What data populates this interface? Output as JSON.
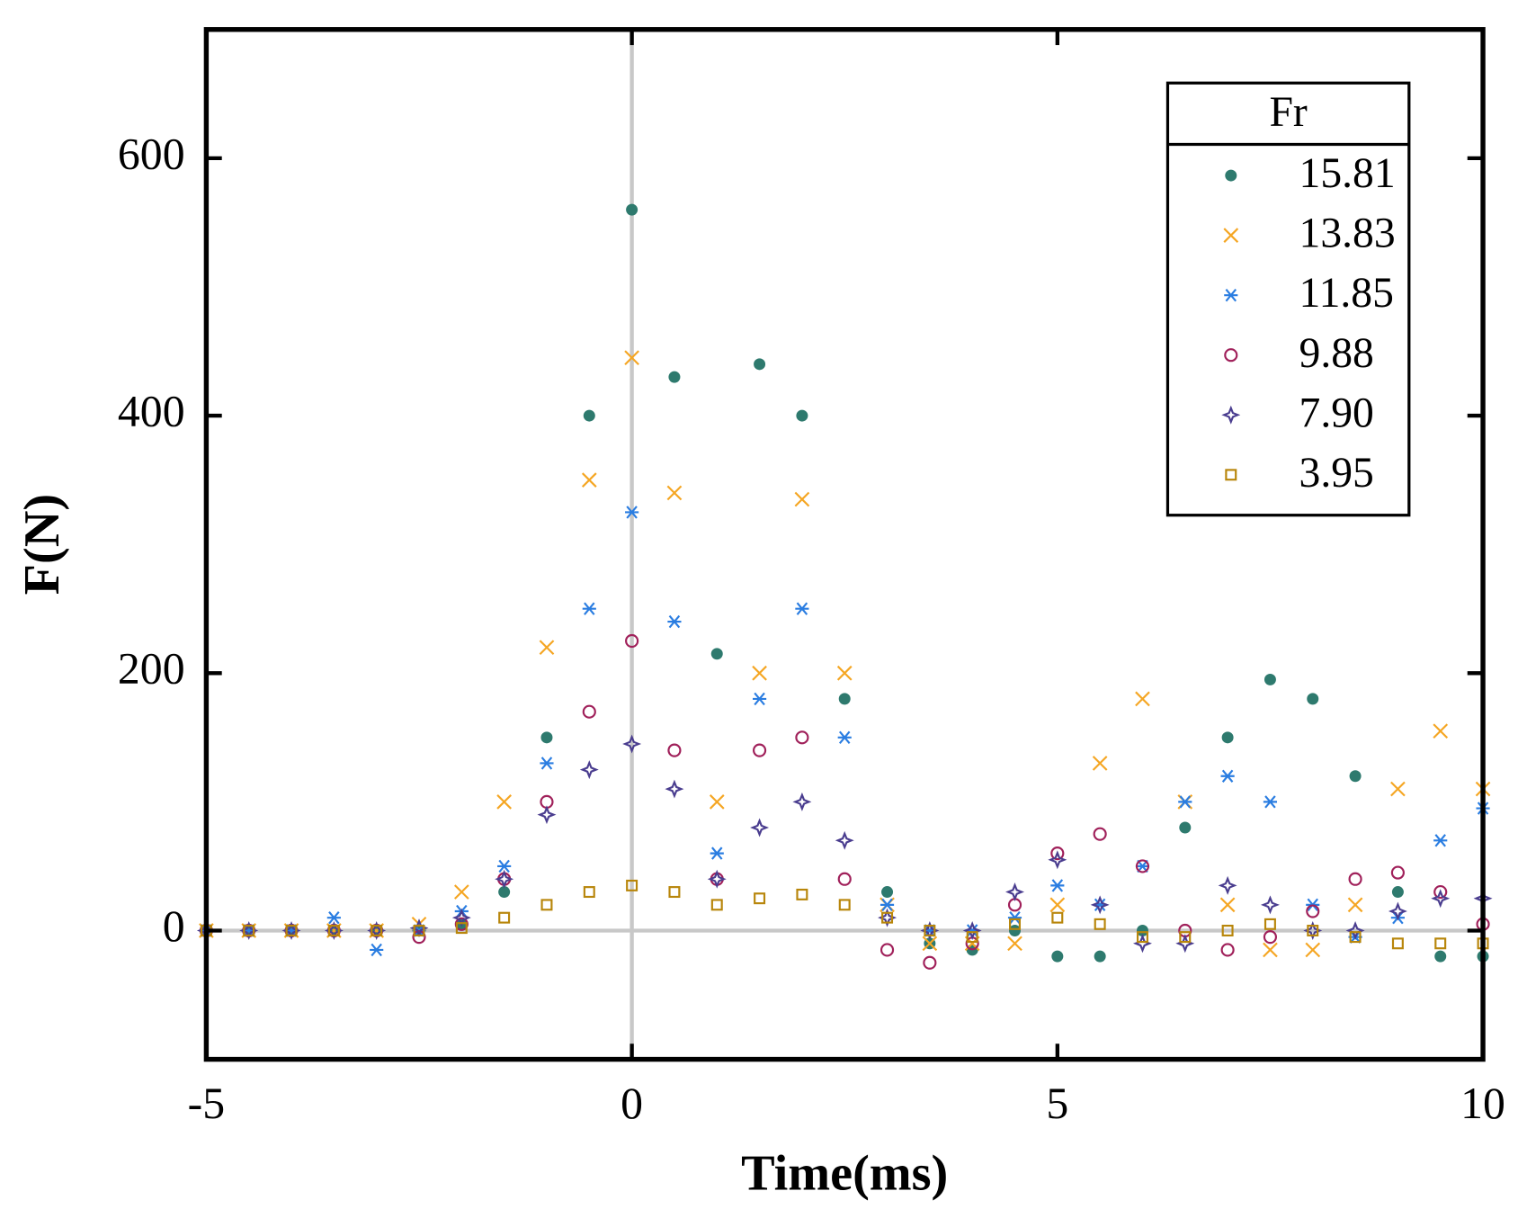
{
  "chart_data": {
    "type": "scatter",
    "x_label": "Time(ms)",
    "y_label": "F(N)",
    "legend_title": "Fr",
    "legend": "upper right",
    "xlim": [
      -5,
      10
    ],
    "ylim": [
      -100,
      700
    ],
    "xticks": [
      -5,
      0,
      5,
      10
    ],
    "yticks": [
      0,
      200,
      400,
      600
    ],
    "x": [
      -5,
      -4.5,
      -4,
      -3.5,
      -3,
      -2.5,
      -2,
      -1.5,
      -1,
      -0.5,
      0,
      0.5,
      1,
      1.5,
      2,
      2.5,
      3,
      3.5,
      4,
      4.5,
      5,
      5.5,
      6,
      6.5,
      7,
      7.5,
      8,
      8.5,
      9,
      9.5,
      10
    ],
    "series": [
      {
        "name": "15.81",
        "color": "#2e7a6e",
        "marker": "filled-circle",
        "values": [
          0,
          0,
          0,
          0,
          0,
          0,
          5,
          30,
          150,
          400,
          560,
          430,
          215,
          440,
          400,
          180,
          30,
          -10,
          -15,
          0,
          -20,
          -20,
          0,
          80,
          150,
          195,
          180,
          120,
          30,
          -20,
          -20
        ]
      },
      {
        "name": "13.83",
        "color": "#f5a623",
        "marker": "cross",
        "values": [
          0,
          0,
          0,
          0,
          0,
          5,
          30,
          100,
          220,
          350,
          445,
          340,
          100,
          200,
          335,
          200,
          20,
          -10,
          -10,
          -10,
          20,
          130,
          180,
          100,
          20,
          -15,
          -15,
          20,
          110,
          155,
          110
        ]
      },
      {
        "name": "11.85",
        "color": "#2a7de1",
        "marker": "asterisk",
        "values": [
          0,
          0,
          0,
          10,
          -15,
          0,
          15,
          50,
          130,
          250,
          325,
          240,
          60,
          180,
          250,
          150,
          20,
          0,
          0,
          10,
          35,
          20,
          50,
          100,
          120,
          100,
          20,
          -5,
          10,
          70,
          95
        ]
      },
      {
        "name": "9.88",
        "color": "#a0205a",
        "marker": "open-circle",
        "values": [
          0,
          0,
          0,
          0,
          0,
          -5,
          5,
          40,
          100,
          170,
          225,
          140,
          40,
          140,
          150,
          40,
          -15,
          -25,
          -10,
          20,
          60,
          75,
          50,
          0,
          -15,
          -5,
          15,
          40,
          45,
          30,
          5
        ]
      },
      {
        "name": "7.90",
        "color": "#4a3d8f",
        "marker": "star",
        "values": [
          0,
          0,
          0,
          0,
          0,
          2,
          10,
          40,
          90,
          125,
          145,
          110,
          40,
          80,
          100,
          70,
          10,
          0,
          0,
          30,
          55,
          20,
          -10,
          -10,
          35,
          20,
          0,
          0,
          15,
          25,
          25
        ]
      },
      {
        "name": "3.95",
        "color": "#b8860b",
        "marker": "square",
        "values": [
          0,
          0,
          0,
          0,
          0,
          0,
          2,
          10,
          20,
          30,
          35,
          30,
          20,
          25,
          28,
          20,
          10,
          0,
          -5,
          5,
          10,
          5,
          -5,
          -5,
          0,
          5,
          0,
          -5,
          -10,
          -10,
          -10
        ]
      }
    ]
  }
}
